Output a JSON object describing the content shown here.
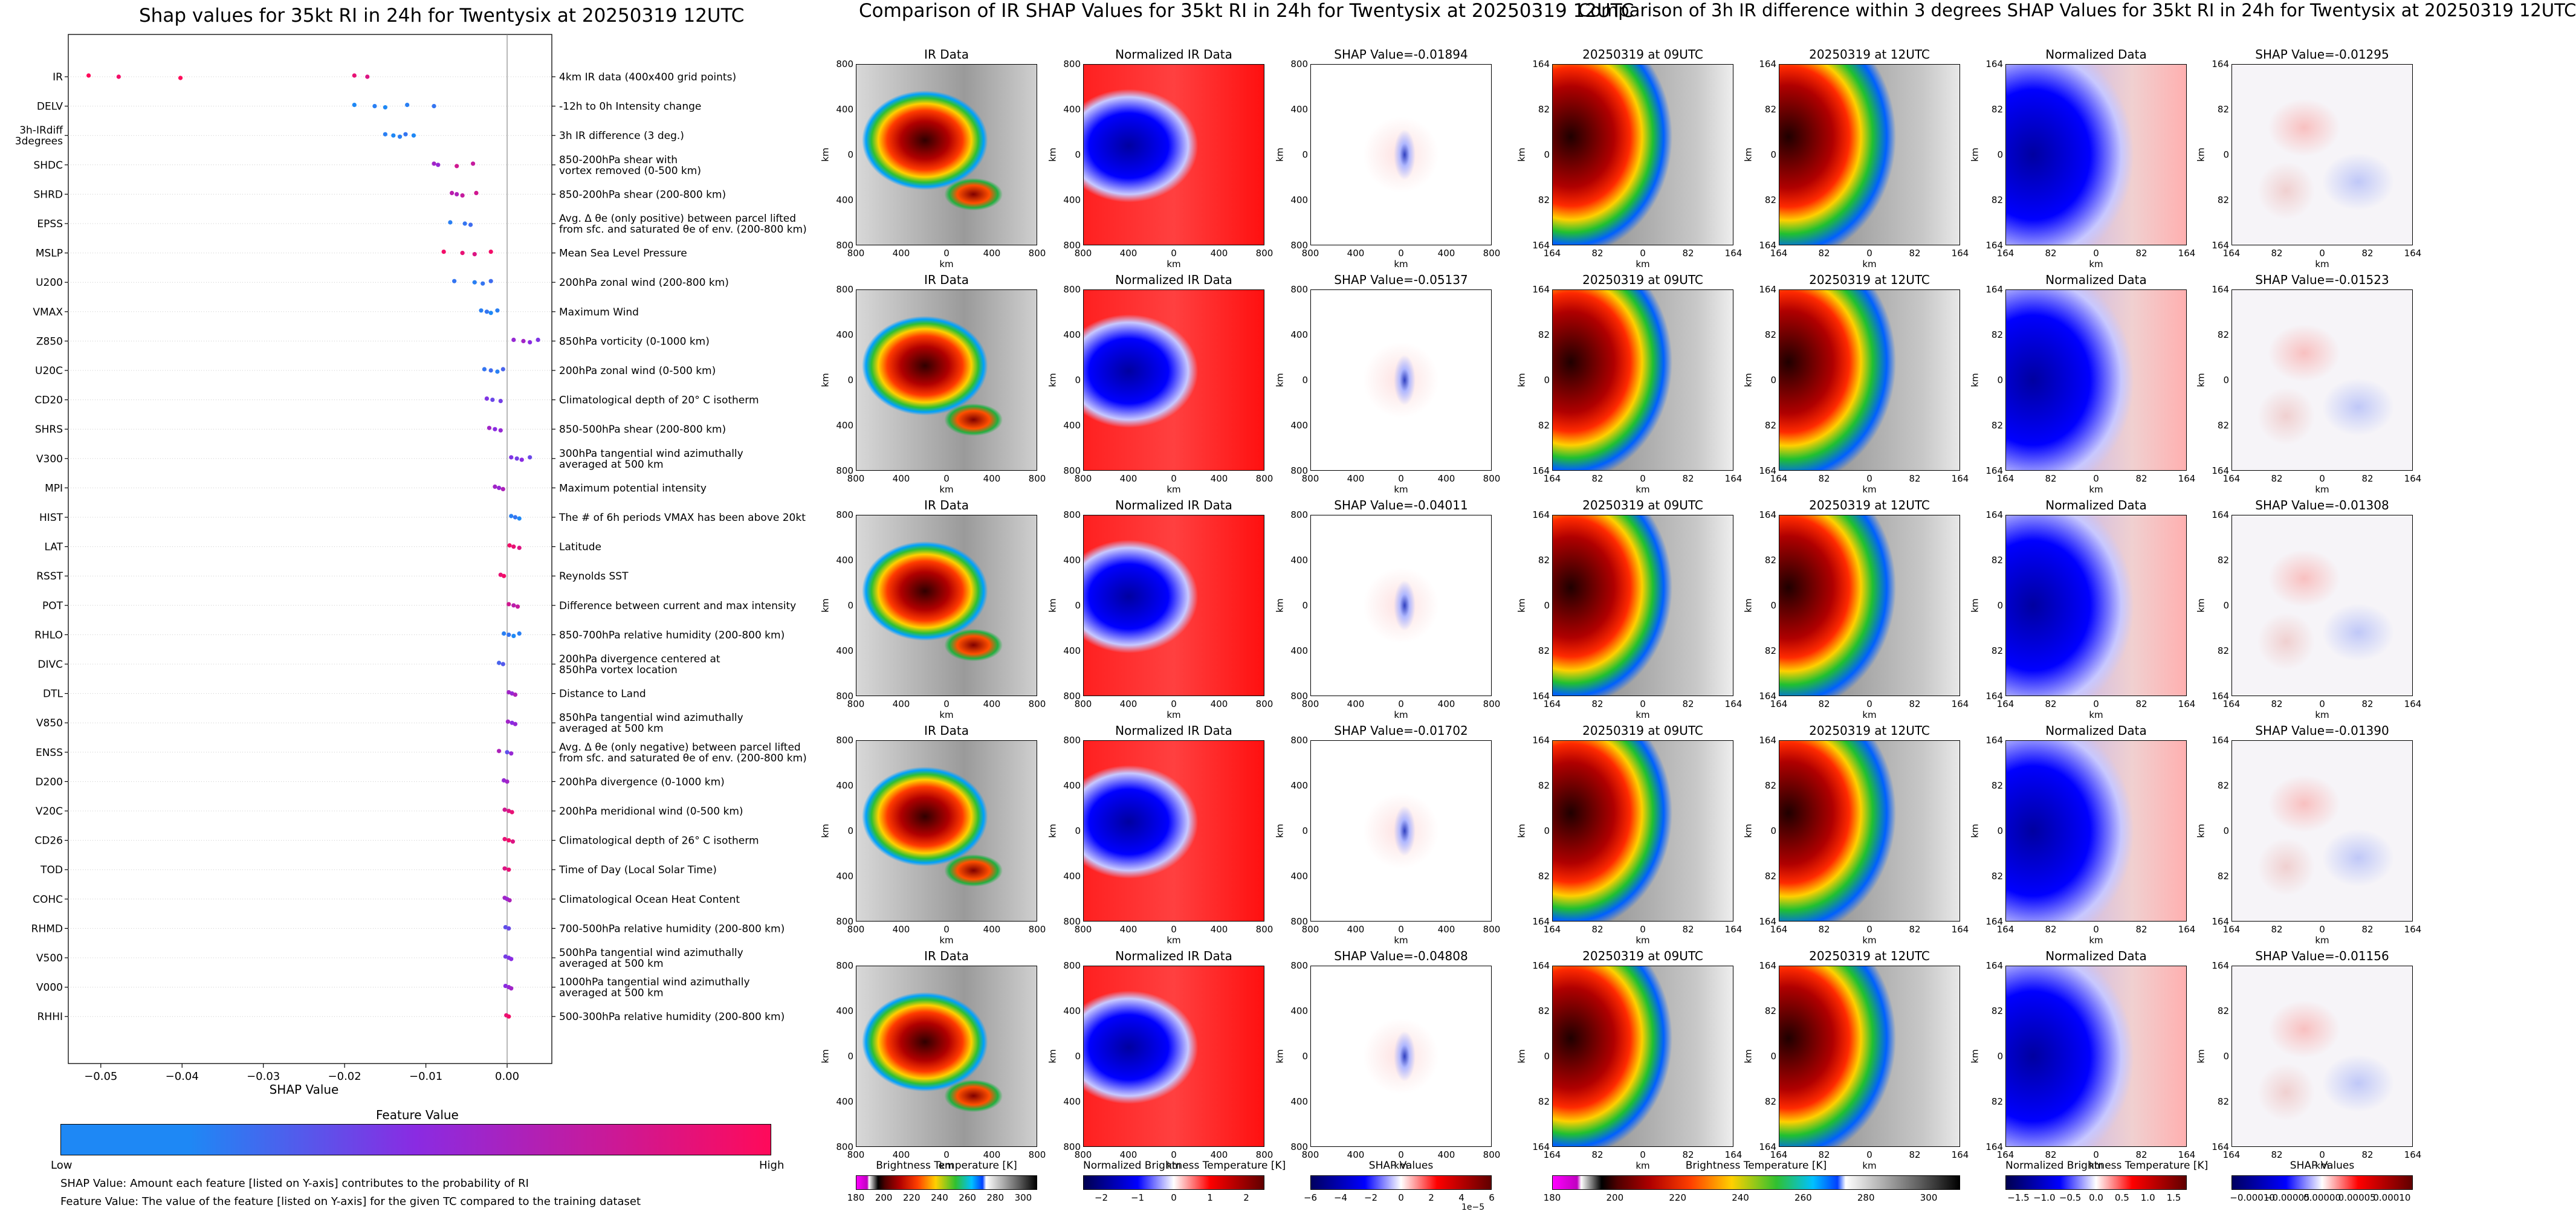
{
  "titles": {
    "shap": "Shap values for 35kt RI in 24h for Twentysix at 20250319 12UTC",
    "ir_compare": "Comparison of IR SHAP Values for 35kt RI in 24h for Twentysix at 20250319 12UTC",
    "diff_compare": "Comparison of 3h IR difference within 3 degrees SHAP Values for 35kt RI in 24h for Twentysix at 20250319 12UTC"
  },
  "colorbar_legend": {
    "title": "Feature Value",
    "low": "Low",
    "high": "High",
    "colors": [
      "#1e88f5",
      "#8a2be2",
      "#ff0a5a"
    ]
  },
  "notes": {
    "shap_value": "SHAP Value: Amount each feature [listed on Y-axis] contributes to the probability of RI",
    "feature_value": "Feature Value: The value of the feature [listed on Y-axis] for the given TC compared to the training dataset"
  },
  "chart_data": [
    {
      "type": "scatter",
      "title": "Shap values for 35kt RI in 24h for Twentysix at 20250319 12UTC",
      "xlabel": "SHAP Value",
      "xlim": [
        -0.054,
        0.0055
      ],
      "xticks": [
        -0.05,
        -0.04,
        -0.03,
        -0.02,
        -0.01,
        0.0
      ],
      "xtick_labels": [
        "−0.05",
        "−0.04",
        "−0.03",
        "−0.02",
        "−0.01",
        "0.00"
      ],
      "grid": false,
      "series": [
        {
          "feature": "IR",
          "desc": "4km IR data (400x400 grid points)",
          "x": [
            -0.0515,
            -0.0478,
            -0.0402,
            -0.0188,
            -0.0172
          ],
          "v": [
            1.0,
            0.95,
            1.0,
            0.9,
            0.85
          ]
        },
        {
          "feature": "DELV",
          "desc": "-12h to 0h Intensity change",
          "x": [
            -0.0188,
            -0.0163,
            -0.015,
            -0.0123,
            -0.009
          ],
          "v": [
            0.0,
            0.05,
            0.0,
            0.05,
            0.1
          ]
        },
        {
          "feature": "3h-IRdiff\n3degrees",
          "desc": "3h IR difference (3 deg.)",
          "x": [
            -0.015,
            -0.014,
            -0.0132,
            -0.0125,
            -0.0115
          ],
          "v": [
            0.05,
            0.0,
            0.05,
            0.1,
            0.0
          ]
        },
        {
          "feature": "SHDC",
          "desc": "850-200hPa shear with\nvortex removed (0-500 km)",
          "x": [
            -0.009,
            -0.0085,
            -0.0062,
            -0.0042
          ],
          "v": [
            0.6,
            0.55,
            0.8,
            0.75
          ]
        },
        {
          "feature": "SHRD",
          "desc": "850-200hPa shear (200-800 km)",
          "x": [
            -0.0068,
            -0.0062,
            -0.0055,
            -0.0038
          ],
          "v": [
            0.7,
            0.65,
            0.75,
            0.8
          ]
        },
        {
          "feature": "EPSS",
          "desc": "Avg. Δ θe (only positive) between parcel lifted\nfrom sfc. and saturated θe of env. (200-800 km)",
          "x": [
            -0.007,
            -0.0052,
            -0.0045
          ],
          "v": [
            0.05,
            0.1,
            0.15
          ]
        },
        {
          "feature": "MSLP",
          "desc": "Mean Sea Level Pressure",
          "x": [
            -0.0078,
            -0.0055,
            -0.004,
            -0.002
          ],
          "v": [
            0.95,
            0.9,
            0.85,
            0.95
          ]
        },
        {
          "feature": "U200",
          "desc": "200hPa zonal wind (200-800 km)",
          "x": [
            -0.0065,
            -0.004,
            -0.003,
            -0.002
          ],
          "v": [
            0.1,
            0.05,
            0.1,
            0.15
          ]
        },
        {
          "feature": "VMAX",
          "desc": "Maximum Wind",
          "x": [
            -0.0032,
            -0.0025,
            -0.002,
            -0.0012
          ],
          "v": [
            0.05,
            0.1,
            0.0,
            0.05
          ]
        },
        {
          "feature": "Z850",
          "desc": "850hPa vorticity (0-1000 km)",
          "x": [
            0.0008,
            0.002,
            0.0028,
            0.0038
          ],
          "v": [
            0.55,
            0.6,
            0.5,
            0.45
          ]
        },
        {
          "feature": "U20C",
          "desc": "200hPa zonal wind (0-500 km)",
          "x": [
            -0.0028,
            -0.002,
            -0.0012,
            -0.0005
          ],
          "v": [
            0.1,
            0.15,
            0.05,
            0.2
          ]
        },
        {
          "feature": "CD20",
          "desc": "Climatological depth of 20° C isotherm",
          "x": [
            -0.0025,
            -0.0018,
            -0.0008
          ],
          "v": [
            0.45,
            0.35,
            0.4
          ]
        },
        {
          "feature": "SHRS",
          "desc": "850-500hPa shear (200-800 km)",
          "x": [
            -0.0022,
            -0.0015,
            -0.0008
          ],
          "v": [
            0.6,
            0.5,
            0.55
          ]
        },
        {
          "feature": "V300",
          "desc": "300hPa tangential wind azimuthally\naveraged at 500 km",
          "x": [
            0.0005,
            0.0012,
            0.0018,
            0.0028
          ],
          "v": [
            0.45,
            0.4,
            0.5,
            0.35
          ]
        },
        {
          "feature": "MPI",
          "desc": "Maximum potential intensity",
          "x": [
            -0.0015,
            -0.001,
            -0.0005
          ],
          "v": [
            0.6,
            0.55,
            0.65
          ]
        },
        {
          "feature": "HIST",
          "desc": "The # of 6h periods VMAX has been above 20kt",
          "x": [
            0.0005,
            0.001,
            0.0015
          ],
          "v": [
            0.05,
            0.1,
            0.0
          ]
        },
        {
          "feature": "LAT",
          "desc": "Latitude",
          "x": [
            0.0003,
            0.0008,
            0.0015
          ],
          "v": [
            0.95,
            0.9,
            0.85
          ]
        },
        {
          "feature": "RSST",
          "desc": "Reynolds SST",
          "x": [
            -0.0008,
            -0.0004
          ],
          "v": [
            0.9,
            0.95
          ]
        },
        {
          "feature": "POT",
          "desc": "Difference between current and max intensity",
          "x": [
            0.0002,
            0.0008,
            0.0013
          ],
          "v": [
            0.8,
            0.7,
            0.75
          ]
        },
        {
          "feature": "RHLO",
          "desc": "850-700hPa relative humidity (200-800 km)",
          "x": [
            -0.0004,
            0.0002,
            0.0008,
            0.0015
          ],
          "v": [
            0.05,
            0.1,
            0.0,
            0.05
          ]
        },
        {
          "feature": "DIVC",
          "desc": "200hPa divergence centered at\n850hPa vortex location",
          "x": [
            -0.001,
            -0.0005
          ],
          "v": [
            0.2,
            0.25
          ]
        },
        {
          "feature": "DTL",
          "desc": "Distance to Land",
          "x": [
            0.0002,
            0.0006,
            0.001
          ],
          "v": [
            0.6,
            0.55,
            0.65
          ]
        },
        {
          "feature": "V850",
          "desc": "850hPa tangential wind azimuthally\naveraged at 500 km",
          "x": [
            0.0001,
            0.0006,
            0.001
          ],
          "v": [
            0.6,
            0.5,
            0.55
          ]
        },
        {
          "feature": "ENSS",
          "desc": "Avg. Δ θe (only negative) between parcel lifted\nfrom sfc. and saturated θe of env. (200-800 km)",
          "x": [
            -0.001,
            0.0,
            0.0005
          ],
          "v": [
            0.65,
            0.3,
            0.55
          ]
        },
        {
          "feature": "D200",
          "desc": "200hPa divergence (0-1000 km)",
          "x": [
            -0.0004,
            0.0
          ],
          "v": [
            0.55,
            0.6
          ]
        },
        {
          "feature": "V20C",
          "desc": "200hPa meridional wind (0-500 km)",
          "x": [
            -0.0003,
            0.0002,
            0.0006
          ],
          "v": [
            0.8,
            0.85,
            0.9
          ]
        },
        {
          "feature": "CD26",
          "desc": "Climatological depth of 26° C isotherm",
          "x": [
            -0.0003,
            0.0002,
            0.0007
          ],
          "v": [
            0.9,
            0.95,
            0.85
          ]
        },
        {
          "feature": "TOD",
          "desc": "Time of Day (Local Solar Time)",
          "x": [
            -0.0003,
            0.0002
          ],
          "v": [
            0.85,
            0.9
          ]
        },
        {
          "feature": "COHC",
          "desc": "Climatological Ocean Heat Content",
          "x": [
            -0.0003,
            0.0,
            0.0003
          ],
          "v": [
            0.6,
            0.55,
            0.65
          ]
        },
        {
          "feature": "RHMD",
          "desc": "700-500hPa relative humidity (200-800 km)",
          "x": [
            -0.0002,
            0.0002
          ],
          "v": [
            0.3,
            0.35
          ]
        },
        {
          "feature": "V500",
          "desc": "500hPa tangential wind azimuthally\naveraged at 500 km",
          "x": [
            -0.0002,
            0.0002,
            0.0005
          ],
          "v": [
            0.4,
            0.45,
            0.5
          ]
        },
        {
          "feature": "V000",
          "desc": "1000hPa tangential wind azimuthally\naveraged at 500 km",
          "x": [
            -0.0002,
            0.0002,
            0.0005
          ],
          "v": [
            0.5,
            0.55,
            0.6
          ]
        },
        {
          "feature": "RHHI",
          "desc": "500-300hPa relative humidity (200-800 km)",
          "x": [
            -0.0001,
            0.0002
          ],
          "v": [
            0.9,
            0.95
          ]
        }
      ]
    },
    {
      "type": "heatmap",
      "group": "ir",
      "col_titles": [
        "IR Data",
        "Normalized IR Data"
      ],
      "shap_titles": [
        "SHAP Value=-0.01894",
        "SHAP Value=-0.05137",
        "SHAP Value=-0.04011",
        "SHAP Value=-0.01702",
        "SHAP Value=-0.04808"
      ],
      "xlabel": "km",
      "ylabel": "km",
      "xtick_labels": [
        "800",
        "400",
        "0",
        "400",
        "800"
      ],
      "ytick_labels": [
        "800",
        "400",
        "0",
        "400",
        "800"
      ],
      "colorbars": [
        {
          "label": "Brightness Temperature [K]",
          "ticks": [
            "180",
            "200",
            "220",
            "240",
            "260",
            "280",
            "300"
          ],
          "range": [
            180,
            310
          ]
        },
        {
          "label": "Normalized Brightness Temperature [K]",
          "ticks": [
            "−2",
            "−1",
            "0",
            "1",
            "2"
          ],
          "range": [
            -2.5,
            2.5
          ]
        },
        {
          "label": "SHAP Values",
          "ticks": [
            "−6",
            "−4",
            "−2",
            "0",
            "2",
            "4",
            "6"
          ],
          "range": [
            -6,
            6
          ],
          "offset": "1e−5"
        }
      ]
    },
    {
      "type": "heatmap",
      "group": "3h_ir_diff",
      "col_titles": [
        "20250319 at 09UTC",
        "20250319 at 12UTC",
        "Normalized Data"
      ],
      "shap_titles": [
        "SHAP Value=-0.01295",
        "SHAP Value=-0.01523",
        "SHAP Value=-0.01308",
        "SHAP Value=-0.01390",
        "SHAP Value=-0.01156"
      ],
      "xlabel": "km",
      "ylabel": "km",
      "xtick_labels": [
        "164",
        "82",
        "0",
        "82",
        "164"
      ],
      "ytick_labels": [
        "164",
        "82",
        "0",
        "82",
        "164"
      ],
      "colorbars": [
        {
          "label": "Brightness Temperature [K]",
          "ticks": [
            "180",
            "200",
            "220",
            "240",
            "260",
            "280",
            "300"
          ],
          "range": [
            180,
            310
          ]
        },
        {
          "label": "Normalized Brightness Temperature [K]",
          "ticks": [
            "−1.5",
            "−1.0",
            "−0.5",
            "0.0",
            "0.5",
            "1.0",
            "1.5"
          ],
          "range": [
            -1.75,
            1.75
          ]
        },
        {
          "label": "SHAP Values",
          "ticks": [
            "−0.00010",
            "−0.00005",
            "0.00000",
            "0.00005",
            "0.00010"
          ],
          "range": [
            -0.00013,
            0.00013
          ]
        }
      ]
    }
  ]
}
